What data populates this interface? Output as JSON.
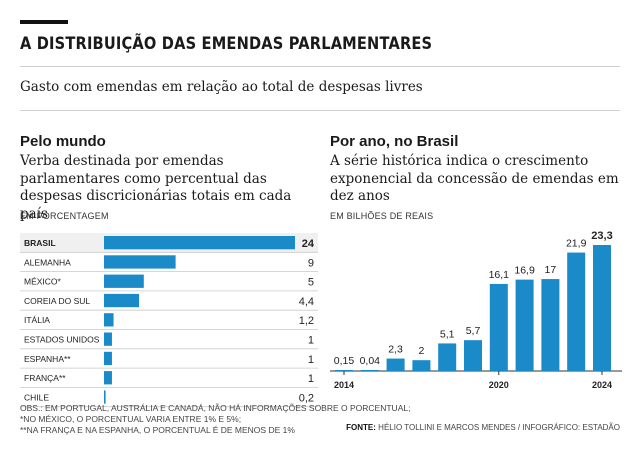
{
  "header": {
    "title": "A DISTRIBUIÇÃO DAS EMENDAS PARLAMENTARES",
    "subtitle": "Gasto com emendas em relação ao total de despesas livres"
  },
  "left": {
    "heading": "Pelo mundo",
    "description": "Verba destinada por emendas parlamentares como percentual das despesas discricionárias totais em cada país",
    "unit": "EM PORCENTAGEM"
  },
  "right": {
    "heading": "Por ano, no Brasil",
    "description": "A série histórica indica o crescimento exponencial da concessão de emendas em dez anos",
    "unit": "EM BILHÕES DE REAIS"
  },
  "chart_data": [
    {
      "type": "bar",
      "orientation": "horizontal",
      "categories": [
        "BRASIL",
        "ALEMANHA",
        "MÉXICO*",
        "COREIA DO SUL",
        "ITÁLIA",
        "ESTADOS UNIDOS",
        "ESPANHA**",
        "FRANÇA**",
        "CHILE"
      ],
      "values": [
        24,
        9,
        5,
        4.4,
        1.2,
        1,
        1,
        1,
        0.2
      ],
      "value_labels": [
        "24",
        "9",
        "5",
        "4,4",
        "1,2",
        "1",
        "1",
        "1",
        "0,2"
      ],
      "highlight": "BRASIL",
      "xlim": [
        0,
        24
      ],
      "color": "#1a8ac9"
    },
    {
      "type": "bar",
      "orientation": "vertical",
      "categories": [
        "2014",
        "2015",
        "2016",
        "2017",
        "2018",
        "2019",
        "2020",
        "2021",
        "2022",
        "2023",
        "2024"
      ],
      "values": [
        0.15,
        0.04,
        2.3,
        2,
        5.1,
        5.7,
        16.1,
        16.9,
        17,
        21.9,
        23.3
      ],
      "value_labels": [
        "0,15",
        "0,04",
        "2,3",
        "2",
        "5,1",
        "5,7",
        "16,1",
        "16,9",
        "17",
        "21,9",
        "23,3"
      ],
      "x_tick_labels": [
        "2014",
        "2020",
        "2024"
      ],
      "ylim": [
        0,
        23.3
      ],
      "color": "#1a8ac9"
    }
  ],
  "footer": {
    "notes": [
      "OBS.: EM PORTUGAL, AUSTRÁLIA E CANADÁ, NÃO HÁ INFORMAÇÕES SOBRE O PORCENTUAL;",
      "*NO MÉXICO, O PORCENTUAL VARIA ENTRE 1% E 5%;",
      "**NA FRANÇA E NA ESPANHA, O PORCENTUAL É DE MENOS DE 1%"
    ],
    "source_label": "FONTE:",
    "source_text": "HÉLIO TOLLINI E MARCOS MENDES / INFOGRÁFICO: ESTADÃO"
  },
  "colors": {
    "bar": "#1a8ac9",
    "highlight_row": "#f0f0f0",
    "text": "#1a1a1a"
  }
}
